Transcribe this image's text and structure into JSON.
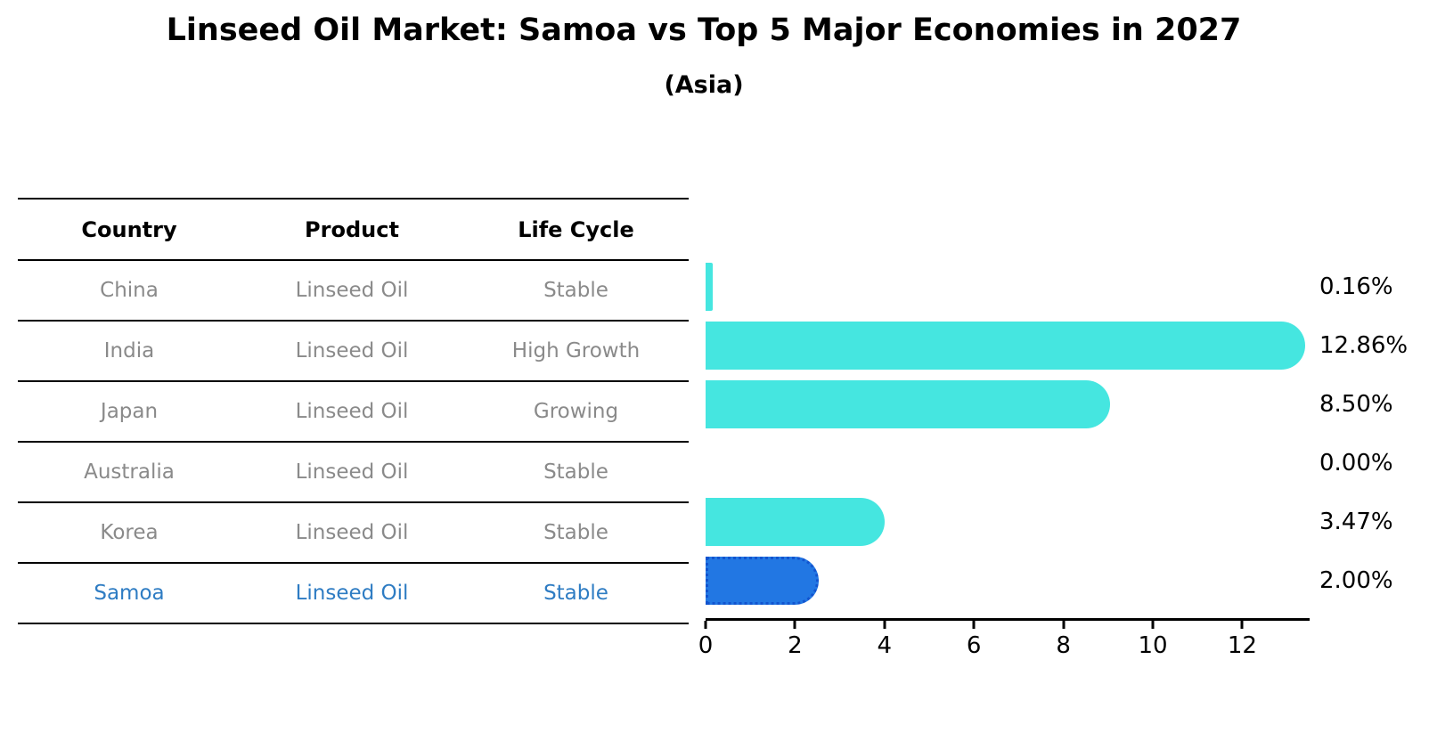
{
  "header": {
    "title": "Linseed Oil Market: Samoa vs Top 5 Major Economies in 2027",
    "subtitle": "(Asia)"
  },
  "table": {
    "headers": [
      "Country",
      "Product",
      "Life Cycle"
    ],
    "rows": [
      {
        "country": "China",
        "product": "Linseed Oil",
        "life_cycle": "Stable",
        "highlighted": false
      },
      {
        "country": "India",
        "product": "Linseed Oil",
        "life_cycle": "High Growth",
        "highlighted": false
      },
      {
        "country": "Japan",
        "product": "Linseed Oil",
        "life_cycle": "Growing",
        "highlighted": false
      },
      {
        "country": "Australia",
        "product": "Linseed Oil",
        "life_cycle": "Stable",
        "highlighted": false
      },
      {
        "country": "Korea",
        "product": "Linseed Oil",
        "life_cycle": "Stable",
        "highlighted": false
      },
      {
        "country": "Samoa",
        "product": "Linseed Oil",
        "life_cycle": "Stable",
        "highlighted": true
      }
    ]
  },
  "chart_data": {
    "type": "bar",
    "orientation": "horizontal",
    "title": "Linseed Oil Market: Samoa vs Top 5 Major Economies in 2027",
    "subtitle": "(Asia)",
    "categories": [
      "China",
      "India",
      "Japan",
      "Australia",
      "Korea",
      "Samoa"
    ],
    "values": [
      0.16,
      12.86,
      8.5,
      0.0,
      3.47,
      2.0
    ],
    "value_labels": [
      "0.16%",
      "12.86%",
      "8.50%",
      "0.00%",
      "3.47%",
      "2.00%"
    ],
    "x_ticks": [
      0,
      2,
      4,
      6,
      8,
      10,
      12
    ],
    "xlim": [
      0,
      13.5
    ],
    "grid": false,
    "legend": "none",
    "bar_color": "#45e6e0",
    "highlight_index": 5,
    "highlight_color": "#2277e3",
    "highlight_border_color": "#1254cf",
    "text_color_rows": "#8a8a8a",
    "text_color_highlight": "#2e7cc3"
  }
}
